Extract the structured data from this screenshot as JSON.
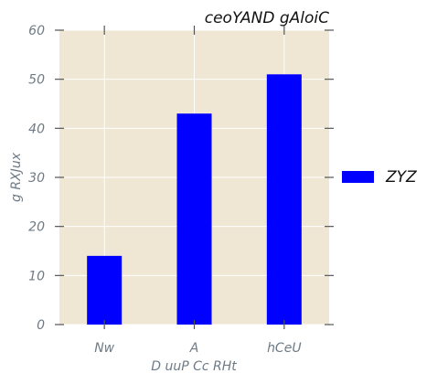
{
  "chart_data": {
    "type": "bar",
    "title": "ceoYAND gAloiC",
    "xlabel": "D uuP  Cc RHt",
    "ylabel": "g  RXJux",
    "categories": [
      "Nw",
      "A",
      "hCeU"
    ],
    "series": [
      {
        "name": "ZYZ",
        "values": [
          14,
          43,
          51
        ],
        "color": "#0000ff"
      }
    ],
    "ylim": [
      0,
      60
    ],
    "yticks": [
      0,
      10,
      20,
      30,
      40,
      50,
      60
    ],
    "grid": true,
    "legend": "right",
    "background": "#efe6d4"
  }
}
